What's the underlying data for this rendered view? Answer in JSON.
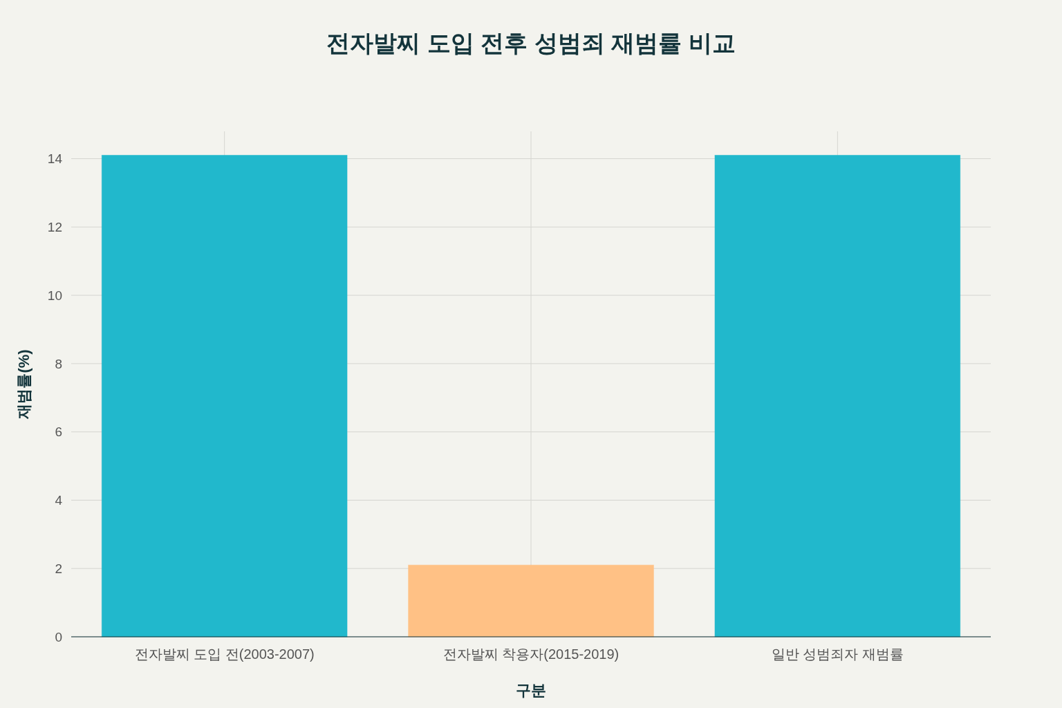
{
  "chart_data": {
    "type": "bar",
    "title": "전자발찌 도입 전후 성범죄 재범률 비교",
    "xlabel": "구분",
    "ylabel": "재범률(%)",
    "categories": [
      "전자발찌 도입 전(2003-2007)",
      "전자발찌 착용자(2015-2019)",
      "일반 성범죄자 재범률"
    ],
    "values": [
      14.1,
      2.1,
      14.1
    ],
    "colors": [
      "#21b8cc",
      "#ffc185",
      "#21b8cc"
    ],
    "ylim": [
      0,
      14.8
    ],
    "yticks": [
      0,
      2,
      4,
      6,
      8,
      10,
      12,
      14
    ],
    "grid": true
  }
}
